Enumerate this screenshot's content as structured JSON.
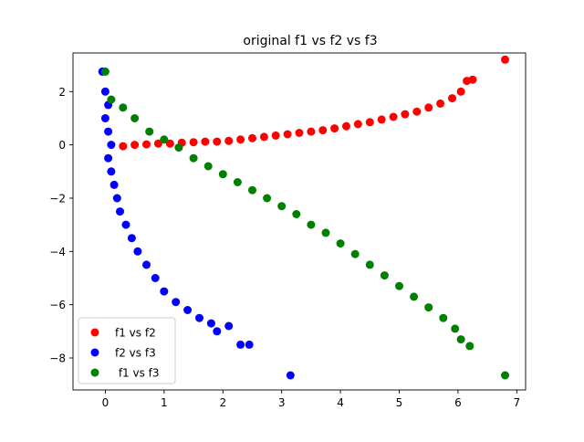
{
  "chart_data": {
    "type": "scatter",
    "title": "original f1 vs f2 vs f3",
    "xlabel": "",
    "ylabel": "",
    "xlim": [
      -0.55,
      7.15
    ],
    "ylim": [
      -9.2,
      3.45
    ],
    "x_ticks": [
      0,
      1,
      2,
      3,
      4,
      5,
      6,
      7
    ],
    "y_ticks": [
      2,
      0,
      -2,
      -4,
      -6,
      -8
    ],
    "x_tick_labels": [
      "0",
      "1",
      "2",
      "3",
      "4",
      "5",
      "6",
      "7"
    ],
    "y_tick_labels": [
      "2",
      "0",
      "−2",
      "−4",
      "−6",
      "−8"
    ],
    "grid": false,
    "legend_position": "lower-left",
    "series": [
      {
        "name": "f1 vs f2",
        "color": "#ff0000",
        "points": [
          [
            0.3,
            -0.05
          ],
          [
            0.5,
            0.0
          ],
          [
            0.7,
            0.02
          ],
          [
            0.9,
            0.05
          ],
          [
            1.1,
            0.05
          ],
          [
            1.3,
            0.08
          ],
          [
            1.5,
            0.1
          ],
          [
            1.7,
            0.12
          ],
          [
            1.9,
            0.12
          ],
          [
            2.1,
            0.15
          ],
          [
            2.3,
            0.2
          ],
          [
            2.5,
            0.25
          ],
          [
            2.7,
            0.3
          ],
          [
            2.9,
            0.35
          ],
          [
            3.1,
            0.4
          ],
          [
            3.3,
            0.45
          ],
          [
            3.5,
            0.5
          ],
          [
            3.7,
            0.55
          ],
          [
            3.9,
            0.62
          ],
          [
            4.1,
            0.7
          ],
          [
            4.3,
            0.78
          ],
          [
            4.5,
            0.85
          ],
          [
            4.7,
            0.95
          ],
          [
            4.9,
            1.05
          ],
          [
            5.1,
            1.15
          ],
          [
            5.3,
            1.25
          ],
          [
            5.5,
            1.4
          ],
          [
            5.7,
            1.55
          ],
          [
            5.9,
            1.75
          ],
          [
            6.05,
            2.0
          ],
          [
            6.15,
            2.4
          ],
          [
            6.25,
            2.45
          ],
          [
            6.8,
            3.2
          ]
        ]
      },
      {
        "name": "f2 vs f3",
        "color": "#0000ff",
        "points": [
          [
            -0.05,
            2.75
          ],
          [
            0.0,
            2.0
          ],
          [
            0.05,
            1.5
          ],
          [
            0.0,
            1.0
          ],
          [
            0.05,
            0.5
          ],
          [
            0.1,
            0.0
          ],
          [
            0.05,
            -0.5
          ],
          [
            0.1,
            -1.0
          ],
          [
            0.15,
            -1.5
          ],
          [
            0.2,
            -2.0
          ],
          [
            0.25,
            -2.5
          ],
          [
            0.35,
            -3.0
          ],
          [
            0.45,
            -3.5
          ],
          [
            0.55,
            -4.0
          ],
          [
            0.7,
            -4.5
          ],
          [
            0.85,
            -5.0
          ],
          [
            1.0,
            -5.5
          ],
          [
            1.2,
            -5.9
          ],
          [
            1.4,
            -6.2
          ],
          [
            1.6,
            -6.5
          ],
          [
            1.8,
            -6.7
          ],
          [
            1.9,
            -7.0
          ],
          [
            2.1,
            -6.8
          ],
          [
            2.3,
            -7.5
          ],
          [
            2.45,
            -7.5
          ],
          [
            3.15,
            -8.65
          ]
        ]
      },
      {
        "name": " f1 vs f3",
        "color": "#008000",
        "points": [
          [
            0.0,
            2.75
          ],
          [
            0.1,
            1.7
          ],
          [
            0.3,
            1.4
          ],
          [
            0.5,
            1.0
          ],
          [
            0.75,
            0.5
          ],
          [
            1.0,
            0.2
          ],
          [
            1.25,
            -0.1
          ],
          [
            1.5,
            -0.5
          ],
          [
            1.75,
            -0.8
          ],
          [
            2.0,
            -1.1
          ],
          [
            2.25,
            -1.4
          ],
          [
            2.5,
            -1.7
          ],
          [
            2.75,
            -2.0
          ],
          [
            3.0,
            -2.3
          ],
          [
            3.25,
            -2.6
          ],
          [
            3.5,
            -3.0
          ],
          [
            3.75,
            -3.3
          ],
          [
            4.0,
            -3.7
          ],
          [
            4.25,
            -4.1
          ],
          [
            4.5,
            -4.5
          ],
          [
            4.75,
            -4.9
          ],
          [
            5.0,
            -5.3
          ],
          [
            5.25,
            -5.7
          ],
          [
            5.5,
            -6.1
          ],
          [
            5.75,
            -6.5
          ],
          [
            5.95,
            -6.9
          ],
          [
            6.05,
            -7.3
          ],
          [
            6.2,
            -7.55
          ],
          [
            6.8,
            -8.65
          ]
        ]
      }
    ]
  }
}
